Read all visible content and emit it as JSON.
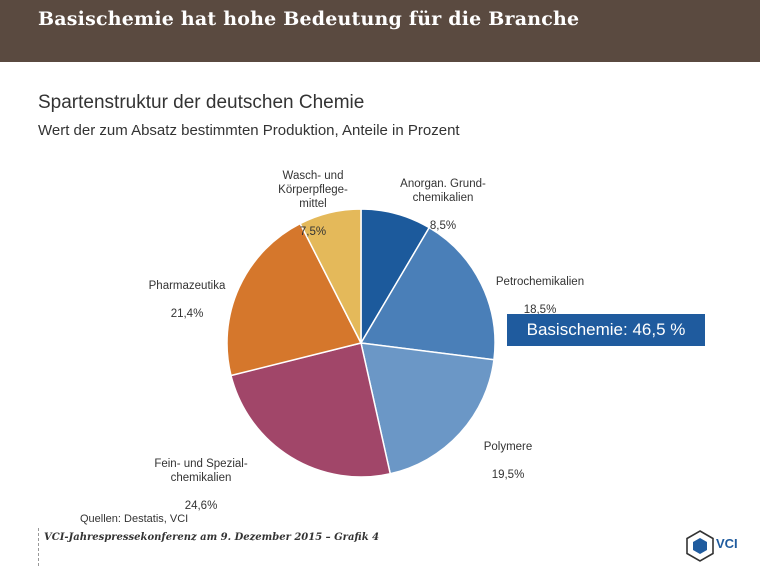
{
  "banner": {
    "title": "Basischemie hat hohe Bedeutung für die Branche"
  },
  "chart_data": {
    "type": "pie",
    "title": "Spartenstruktur der deutschen Chemie",
    "subtitle": "Wert der zum Absatz bestimmten Produktion, Anteile in Prozent",
    "slices": [
      {
        "label": "Anorgan. Grund-\nchemikalien",
        "value_text": "8,5%",
        "value": 8.5,
        "color": "#1c5a9c"
      },
      {
        "label": "Petrochemikalien",
        "value_text": "18,5%",
        "value": 18.5,
        "color": "#4a7fb8"
      },
      {
        "label": "Polymere",
        "value_text": "19,5%",
        "value": 19.5,
        "color": "#6b97c6"
      },
      {
        "label": "Fein- und Spezial-\nchemikalien",
        "value_text": "24,6%",
        "value": 24.6,
        "color": "#a14669"
      },
      {
        "label": "Pharmazeutika",
        "value_text": "21,4%",
        "value": 21.4,
        "color": "#d5772c"
      },
      {
        "label": "Wasch- und\nKörperpflege-\nmittel",
        "value_text": "7,5%",
        "value": 7.5,
        "color": "#e4b95a"
      }
    ],
    "highlight": "Basischemie: 46,5 %"
  },
  "source": "Quellen: Destatis, VCI",
  "footer": {
    "text": "VCI-Jahrespressekonferenz am 9. Dezember 2015 – Grafik 4"
  },
  "logo": {
    "text": "VCI",
    "icon": "vci-hexagon-icon",
    "color": "#1f5b9e"
  }
}
